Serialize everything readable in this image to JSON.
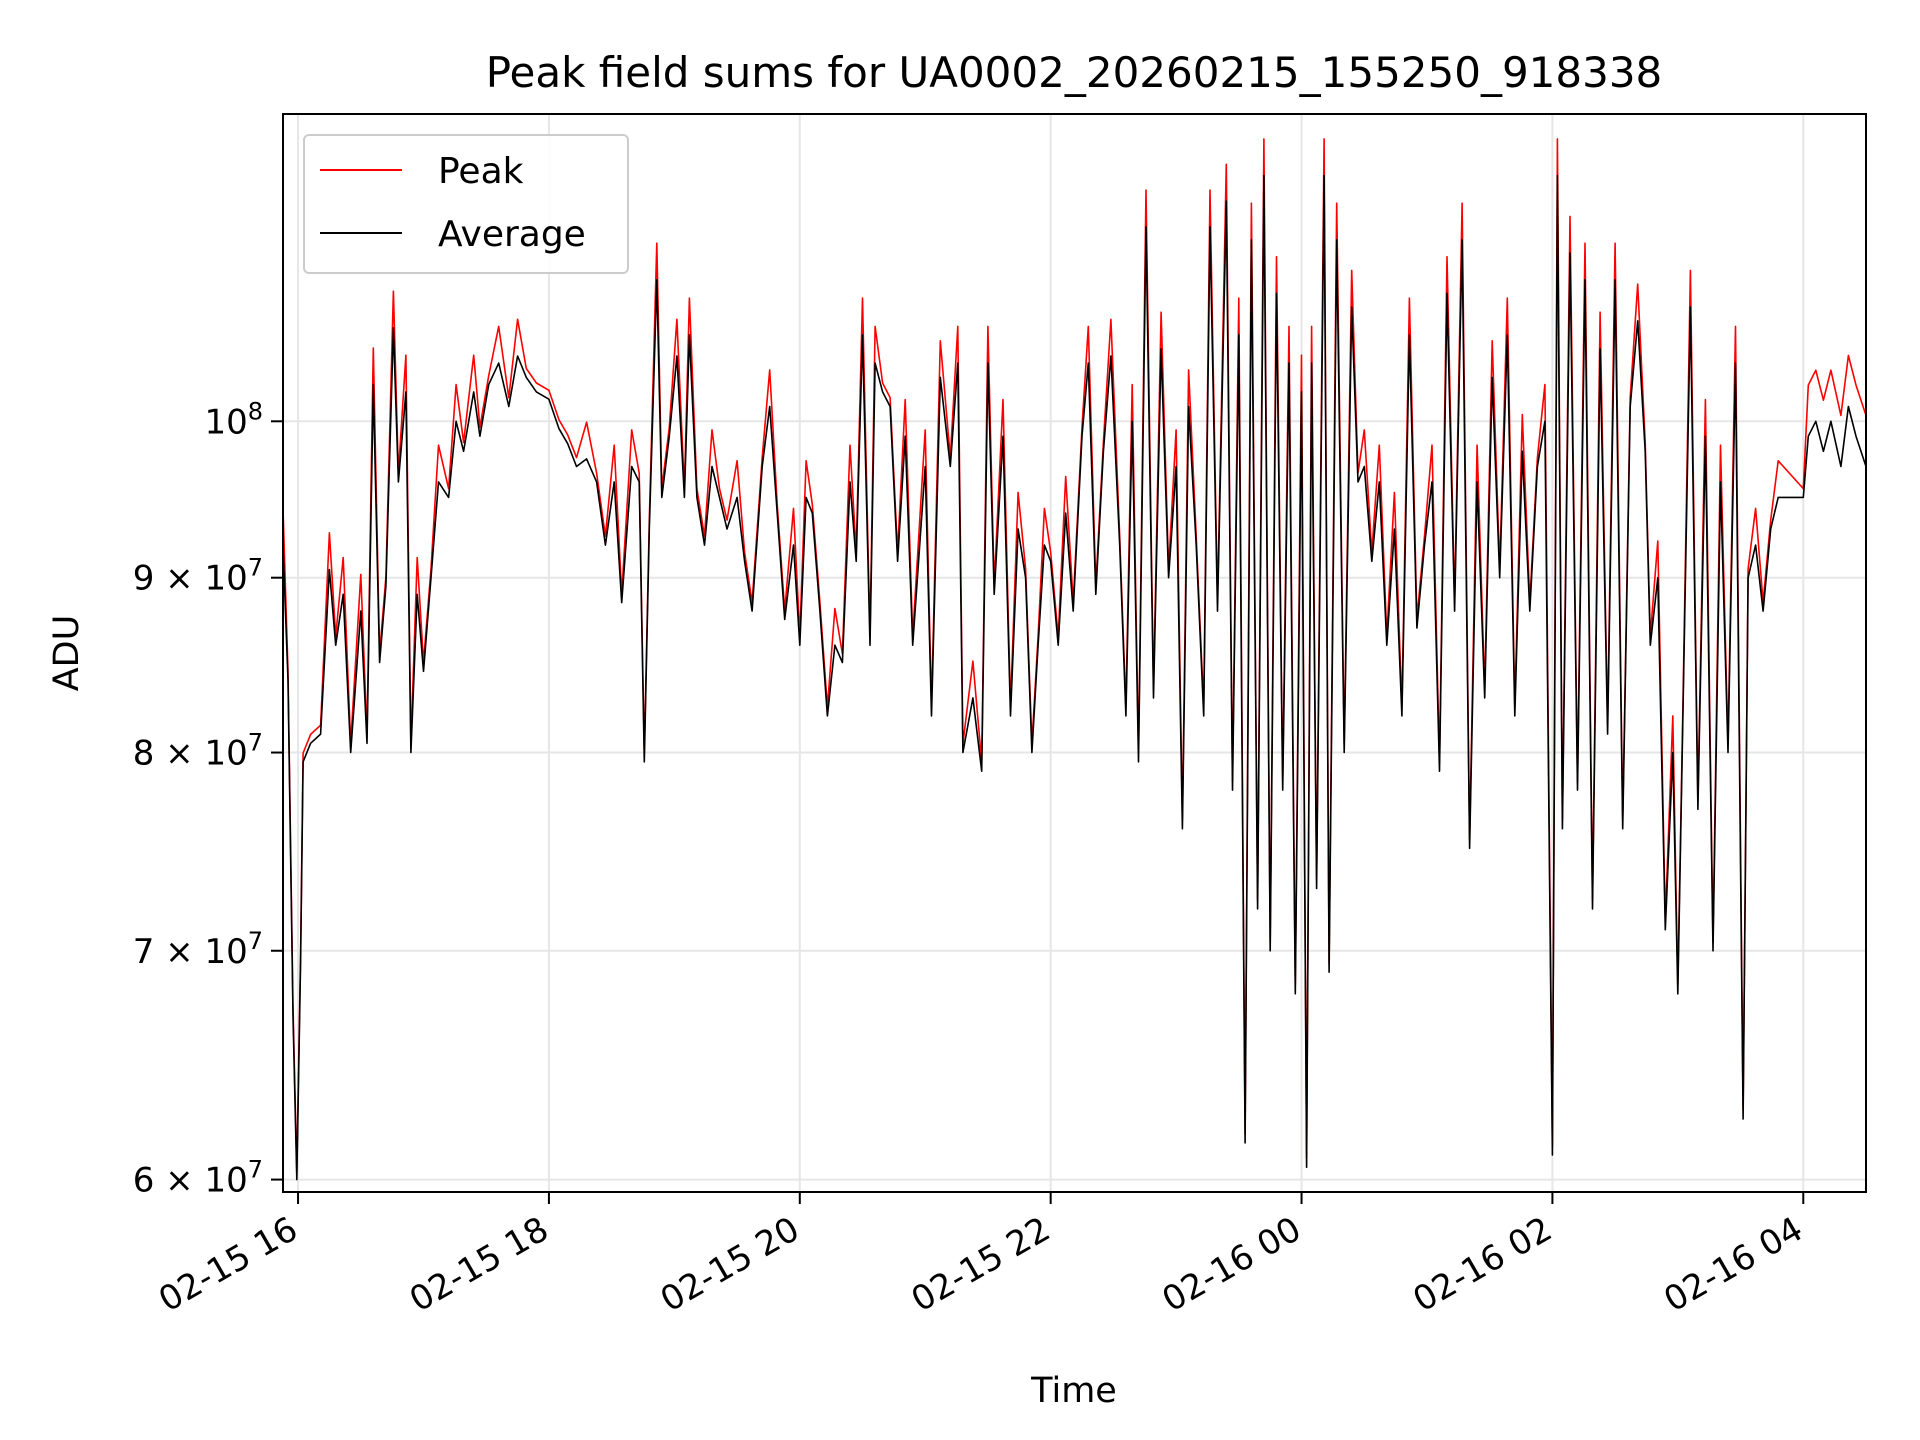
{
  "chart_data": {
    "type": "line",
    "title": "Peak field sums for UA0002_20260215_155250_918338",
    "xlabel": "Time",
    "ylabel": "ADU",
    "yscale": "log",
    "x_range_hours": [
      15.88,
      28.5
    ],
    "ylim": [
      59500000,
      123000000
    ],
    "grid": true,
    "x_ticks": [
      {
        "hour": 16,
        "label": "02-15 16"
      },
      {
        "hour": 18,
        "label": "02-15 18"
      },
      {
        "hour": 20,
        "label": "02-15 20"
      },
      {
        "hour": 22,
        "label": "02-15 22"
      },
      {
        "hour": 24,
        "label": "02-16 00"
      },
      {
        "hour": 26,
        "label": "02-16 02"
      },
      {
        "hour": 28,
        "label": "02-16 04"
      }
    ],
    "y_ticks": [
      {
        "value": 60000000,
        "base": "6",
        "exp": "7",
        "mult": true
      },
      {
        "value": 70000000,
        "base": "7",
        "exp": "7",
        "mult": true
      },
      {
        "value": 80000000,
        "base": "8",
        "exp": "7",
        "mult": true
      },
      {
        "value": 90000000,
        "base": "9",
        "exp": "7",
        "mult": true
      },
      {
        "value": 100000000,
        "base": "10",
        "exp": "8",
        "mult": false
      }
    ],
    "legend": {
      "position": "top-left",
      "entries": [
        {
          "name": "Peak",
          "color": "#ff0000"
        },
        {
          "name": "Average",
          "color": "#000000"
        }
      ]
    },
    "series": [
      {
        "name": "Average",
        "color": "#000000",
        "unit": "ADU (millions)",
        "points": [
          [
            15.88,
            92
          ],
          [
            15.92,
            84
          ],
          [
            15.96,
            67
          ],
          [
            15.99,
            60
          ],
          [
            16.02,
            69.5
          ],
          [
            16.04,
            79.5
          ],
          [
            16.1,
            80.5
          ],
          [
            16.18,
            81
          ],
          [
            16.25,
            90.5
          ],
          [
            16.3,
            86
          ],
          [
            16.36,
            89
          ],
          [
            16.42,
            80
          ],
          [
            16.5,
            88
          ],
          [
            16.55,
            80.5
          ],
          [
            16.6,
            102.5
          ],
          [
            16.65,
            85
          ],
          [
            16.7,
            89.5
          ],
          [
            16.76,
            106.5
          ],
          [
            16.8,
            96
          ],
          [
            16.86,
            102
          ],
          [
            16.9,
            80
          ],
          [
            16.95,
            89
          ],
          [
            17.0,
            84.5
          ],
          [
            17.06,
            90
          ],
          [
            17.12,
            96
          ],
          [
            17.2,
            95
          ],
          [
            17.26,
            100
          ],
          [
            17.32,
            98
          ],
          [
            17.4,
            102
          ],
          [
            17.45,
            99
          ],
          [
            17.52,
            102.5
          ],
          [
            17.6,
            104
          ],
          [
            17.68,
            101
          ],
          [
            17.75,
            104.5
          ],
          [
            17.82,
            103
          ],
          [
            17.9,
            102
          ],
          [
            18.0,
            101.5
          ],
          [
            18.08,
            99.5
          ],
          [
            18.15,
            98.5
          ],
          [
            18.22,
            97
          ],
          [
            18.3,
            97.5
          ],
          [
            18.38,
            96
          ],
          [
            18.45,
            92
          ],
          [
            18.52,
            96
          ],
          [
            18.58,
            88.5
          ],
          [
            18.66,
            97
          ],
          [
            18.72,
            96
          ],
          [
            18.76,
            79.5
          ],
          [
            18.8,
            93
          ],
          [
            18.86,
            110
          ],
          [
            18.9,
            95
          ],
          [
            18.96,
            99
          ],
          [
            19.02,
            104.5
          ],
          [
            19.08,
            95
          ],
          [
            19.12,
            106
          ],
          [
            19.18,
            95
          ],
          [
            19.24,
            92
          ],
          [
            19.3,
            97
          ],
          [
            19.36,
            95
          ],
          [
            19.42,
            93
          ],
          [
            19.5,
            95
          ],
          [
            19.56,
            91
          ],
          [
            19.62,
            88
          ],
          [
            19.7,
            97
          ],
          [
            19.76,
            101
          ],
          [
            19.82,
            94
          ],
          [
            19.88,
            87.5
          ],
          [
            19.95,
            92
          ],
          [
            20.0,
            86
          ],
          [
            20.05,
            95
          ],
          [
            20.1,
            94
          ],
          [
            20.16,
            88
          ],
          [
            20.22,
            82
          ],
          [
            20.28,
            86
          ],
          [
            20.34,
            85
          ],
          [
            20.4,
            96
          ],
          [
            20.45,
            91
          ],
          [
            20.5,
            106
          ],
          [
            20.56,
            86
          ],
          [
            20.6,
            104
          ],
          [
            20.66,
            102
          ],
          [
            20.72,
            101
          ],
          [
            20.78,
            91
          ],
          [
            20.84,
            99
          ],
          [
            20.9,
            86
          ],
          [
            21.0,
            97
          ],
          [
            21.05,
            82
          ],
          [
            21.12,
            103
          ],
          [
            21.2,
            97
          ],
          [
            21.26,
            104
          ],
          [
            21.3,
            80
          ],
          [
            21.38,
            83
          ],
          [
            21.45,
            79
          ],
          [
            21.5,
            104
          ],
          [
            21.55,
            89
          ],
          [
            21.62,
            99
          ],
          [
            21.68,
            82
          ],
          [
            21.74,
            93
          ],
          [
            21.8,
            90
          ],
          [
            21.85,
            80
          ],
          [
            21.9,
            86
          ],
          [
            21.95,
            92
          ],
          [
            22.0,
            91
          ],
          [
            22.06,
            86
          ],
          [
            22.12,
            94
          ],
          [
            22.18,
            88
          ],
          [
            22.25,
            99
          ],
          [
            22.3,
            104
          ],
          [
            22.36,
            89
          ],
          [
            22.42,
            98
          ],
          [
            22.48,
            104.5
          ],
          [
            22.55,
            92
          ],
          [
            22.6,
            82
          ],
          [
            22.65,
            100
          ],
          [
            22.7,
            79.5
          ],
          [
            22.76,
            114
          ],
          [
            22.82,
            83
          ],
          [
            22.88,
            105
          ],
          [
            22.94,
            90
          ],
          [
            23.0,
            97
          ],
          [
            23.05,
            76
          ],
          [
            23.1,
            101
          ],
          [
            23.16,
            92
          ],
          [
            23.22,
            82
          ],
          [
            23.27,
            114
          ],
          [
            23.33,
            88
          ],
          [
            23.4,
            116
          ],
          [
            23.45,
            78
          ],
          [
            23.5,
            106
          ],
          [
            23.55,
            61.5
          ],
          [
            23.6,
            113
          ],
          [
            23.65,
            72
          ],
          [
            23.7,
            118
          ],
          [
            23.75,
            70
          ],
          [
            23.8,
            109
          ],
          [
            23.85,
            78
          ],
          [
            23.9,
            104
          ],
          [
            23.95,
            68
          ],
          [
            24.0,
            102
          ],
          [
            24.04,
            60.5
          ],
          [
            24.08,
            104
          ],
          [
            24.12,
            73
          ],
          [
            24.18,
            118
          ],
          [
            24.22,
            69
          ],
          [
            24.28,
            113
          ],
          [
            24.34,
            80
          ],
          [
            24.4,
            108
          ],
          [
            24.45,
            96
          ],
          [
            24.5,
            97
          ],
          [
            24.56,
            91
          ],
          [
            24.62,
            96
          ],
          [
            24.68,
            86
          ],
          [
            24.74,
            93
          ],
          [
            24.8,
            82
          ],
          [
            24.86,
            106
          ],
          [
            24.92,
            87
          ],
          [
            24.98,
            92
          ],
          [
            25.04,
            96
          ],
          [
            25.1,
            79
          ],
          [
            25.16,
            109
          ],
          [
            25.22,
            88
          ],
          [
            25.28,
            113
          ],
          [
            25.34,
            75
          ],
          [
            25.4,
            96
          ],
          [
            25.46,
            83
          ],
          [
            25.52,
            103
          ],
          [
            25.58,
            90
          ],
          [
            25.64,
            106
          ],
          [
            25.7,
            82
          ],
          [
            25.76,
            98
          ],
          [
            25.82,
            88
          ],
          [
            25.88,
            97
          ],
          [
            25.94,
            100
          ],
          [
            26.0,
            61
          ],
          [
            26.04,
            118
          ],
          [
            26.08,
            76
          ],
          [
            26.14,
            112
          ],
          [
            26.2,
            78
          ],
          [
            26.26,
            110
          ],
          [
            26.32,
            72
          ],
          [
            26.38,
            105
          ],
          [
            26.44,
            81
          ],
          [
            26.5,
            110
          ],
          [
            26.56,
            76
          ],
          [
            26.62,
            101
          ],
          [
            26.68,
            107
          ],
          [
            26.74,
            98
          ],
          [
            26.78,
            86
          ],
          [
            26.84,
            90
          ],
          [
            26.9,
            71
          ],
          [
            26.96,
            80
          ],
          [
            27.0,
            68
          ],
          [
            27.04,
            82
          ],
          [
            27.1,
            108
          ],
          [
            27.16,
            77
          ],
          [
            27.22,
            99
          ],
          [
            27.28,
            70
          ],
          [
            27.34,
            96
          ],
          [
            27.4,
            80
          ],
          [
            27.46,
            104
          ],
          [
            27.52,
            62.5
          ],
          [
            27.56,
            90
          ],
          [
            27.62,
            92
          ],
          [
            27.68,
            88
          ],
          [
            27.74,
            93
          ],
          [
            27.8,
            95
          ],
          [
            28.0,
            95
          ],
          [
            28.04,
            99
          ],
          [
            28.1,
            100
          ],
          [
            28.16,
            98
          ],
          [
            28.22,
            100
          ],
          [
            28.3,
            97
          ],
          [
            28.36,
            101
          ],
          [
            28.42,
            99
          ],
          [
            28.5,
            97
          ]
        ]
      }
    ]
  }
}
